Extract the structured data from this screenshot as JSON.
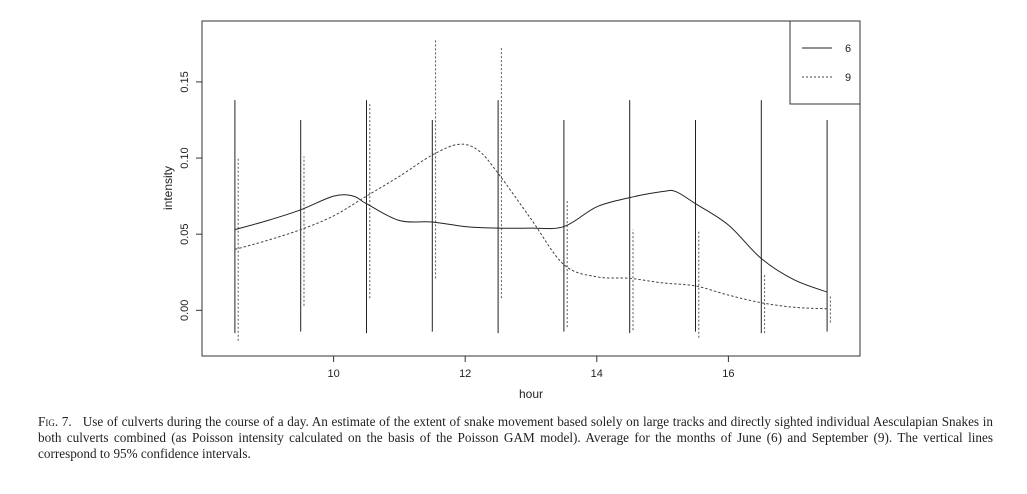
{
  "chart_data": {
    "type": "line",
    "xlabel": "hour",
    "ylabel": "intensity",
    "xlim": [
      8.0,
      18.0
    ],
    "ylim": [
      -0.03,
      0.19
    ],
    "xticks": [
      10,
      12,
      14,
      16
    ],
    "yticks": [
      "0.00",
      "0.05",
      "0.10",
      "0.15"
    ],
    "grid": false,
    "legend_position": "top-right",
    "series": [
      {
        "name": "6",
        "style": "solid",
        "color": "#222222",
        "x": [
          8.5,
          9.0,
          9.5,
          10.0,
          10.3,
          10.5,
          11.0,
          11.5,
          12.0,
          12.5,
          13.0,
          13.5,
          14.0,
          14.5,
          15.0,
          15.2,
          15.5,
          16.0,
          16.5,
          17.0,
          17.5
        ],
        "y": [
          0.053,
          0.059,
          0.066,
          0.075,
          0.075,
          0.07,
          0.059,
          0.058,
          0.055,
          0.054,
          0.054,
          0.055,
          0.068,
          0.074,
          0.078,
          0.078,
          0.07,
          0.056,
          0.034,
          0.02,
          0.012
        ]
      },
      {
        "name": "9",
        "style": "dashed",
        "color": "#444444",
        "x": [
          8.5,
          9.0,
          9.5,
          10.0,
          10.5,
          11.0,
          11.5,
          11.9,
          12.2,
          12.5,
          13.0,
          13.5,
          14.0,
          14.5,
          15.0,
          15.5,
          16.0,
          16.5,
          17.0,
          17.5
        ],
        "y": [
          0.04,
          0.046,
          0.053,
          0.062,
          0.075,
          0.088,
          0.102,
          0.109,
          0.105,
          0.09,
          0.06,
          0.03,
          0.022,
          0.021,
          0.018,
          0.016,
          0.01,
          0.005,
          0.002,
          0.001
        ]
      }
    ],
    "confidence_intervals": [
      {
        "series": "6",
        "x": 8.5,
        "low": -0.015,
        "high": 0.138
      },
      {
        "series": "6",
        "x": 9.5,
        "low": -0.014,
        "high": 0.125
      },
      {
        "series": "6",
        "x": 10.5,
        "low": -0.015,
        "high": 0.138
      },
      {
        "series": "6",
        "x": 11.5,
        "low": -0.014,
        "high": 0.125
      },
      {
        "series": "6",
        "x": 12.5,
        "low": -0.015,
        "high": 0.138
      },
      {
        "series": "6",
        "x": 13.5,
        "low": -0.014,
        "high": 0.125
      },
      {
        "series": "6",
        "x": 14.5,
        "low": -0.015,
        "high": 0.138
      },
      {
        "series": "6",
        "x": 15.5,
        "low": -0.014,
        "high": 0.125
      },
      {
        "series": "6",
        "x": 16.5,
        "low": -0.015,
        "high": 0.138
      },
      {
        "series": "6",
        "x": 17.5,
        "low": -0.014,
        "high": 0.125
      },
      {
        "series": "9",
        "x": 8.55,
        "low": -0.02,
        "high": 0.1
      },
      {
        "series": "9",
        "x": 9.55,
        "low": 0.003,
        "high": 0.101
      },
      {
        "series": "9",
        "x": 10.55,
        "low": 0.008,
        "high": 0.136
      },
      {
        "series": "9",
        "x": 11.55,
        "low": 0.021,
        "high": 0.178
      },
      {
        "series": "9",
        "x": 12.55,
        "low": 0.008,
        "high": 0.173
      },
      {
        "series": "9",
        "x": 13.55,
        "low": -0.011,
        "high": 0.072
      },
      {
        "series": "9",
        "x": 14.55,
        "low": -0.013,
        "high": 0.053
      },
      {
        "series": "9",
        "x": 15.55,
        "low": -0.018,
        "high": 0.052
      },
      {
        "series": "9",
        "x": 16.55,
        "low": -0.015,
        "high": 0.024
      },
      {
        "series": "9",
        "x": 17.55,
        "low": -0.008,
        "high": 0.01
      }
    ]
  },
  "caption": {
    "label": "Fig. 7.",
    "text": "Use of culverts during the course of a day. An estimate of the extent of snake movement based solely on large tracks and directly sighted individual Aesculapian Snakes in both culverts combined (as Poisson intensity calculated on the basis of the Poisson GAM model). Average for the months of June (6) and September (9). The vertical lines correspond to 95% confidence intervals."
  }
}
